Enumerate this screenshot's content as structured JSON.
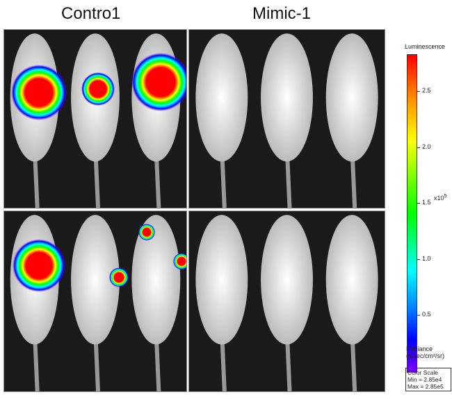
{
  "titles": {
    "left": "Contro1",
    "right": "Mimic-1"
  },
  "colorbar": {
    "title": "Luminescence",
    "ticks": [
      {
        "label": "2.5",
        "value": 2.5
      },
      {
        "label": "2.0",
        "value": 2.0
      },
      {
        "label": "1.5",
        "value": 1.5
      },
      {
        "label": "1.0",
        "value": 1.0
      },
      {
        "label": "0.5",
        "value": 0.5
      }
    ],
    "exponent_label": "x10",
    "exponent": "5",
    "unit_label": "Radiance",
    "unit": "(p/sec/cm²/sr)",
    "scale_title": "Color Scale",
    "min": "Min = 2.85e4",
    "max": "Max = 2.85e5"
  }
}
